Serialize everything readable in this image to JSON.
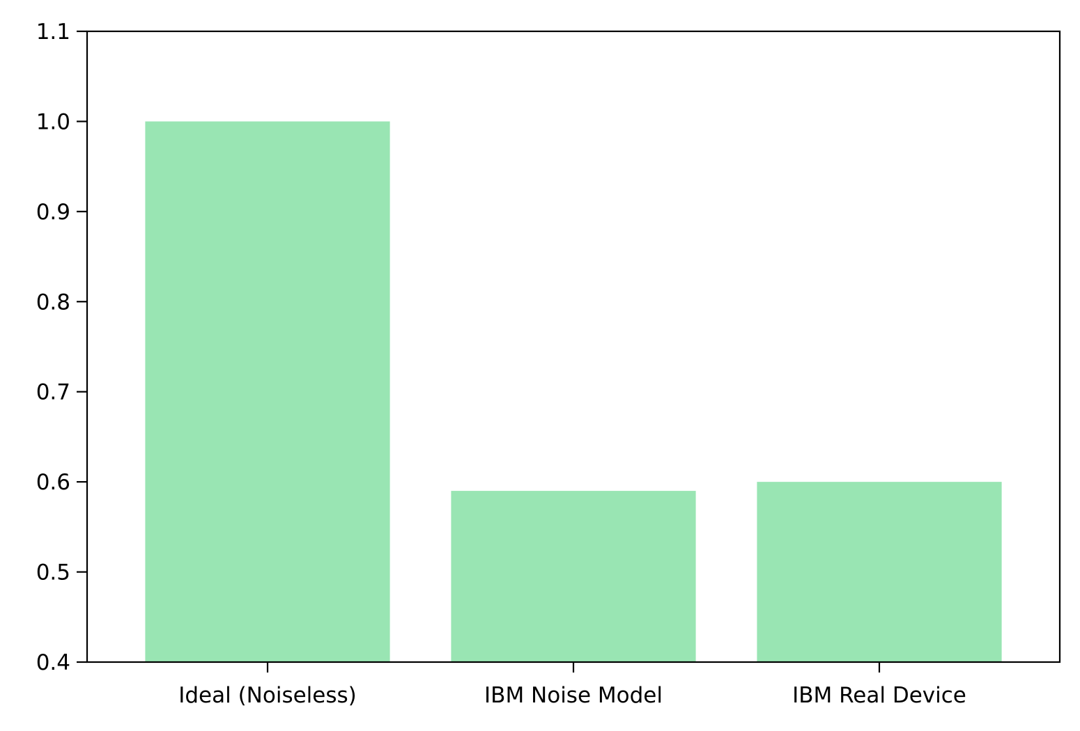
{
  "chart_data": {
    "type": "bar",
    "categories": [
      "Ideal (Noiseless)",
      "IBM Noise Model",
      "IBM Real Device"
    ],
    "values": [
      1.0,
      0.59,
      0.6
    ],
    "title": "",
    "xlabel": "",
    "ylabel": "",
    "ylim": [
      0.4,
      1.1
    ],
    "yticks": [
      "0.4",
      "0.5",
      "0.6",
      "0.7",
      "0.8",
      "0.9",
      "1.0",
      "1.1"
    ],
    "grid": false,
    "legend": "none",
    "bar_color": "#99e5b3"
  }
}
